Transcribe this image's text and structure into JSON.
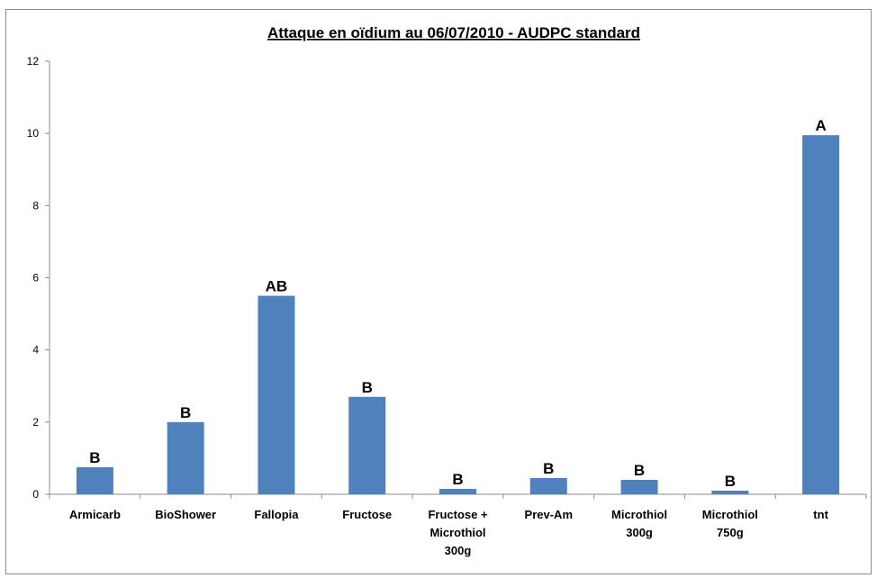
{
  "chart_data": {
    "type": "bar",
    "title": "Attaque en oïdium au 06/07/2010 - AUDPC standard",
    "xlabel": "",
    "ylabel": "",
    "ylim": [
      0,
      12
    ],
    "yticks": [
      "0",
      "2",
      "4",
      "6",
      "8",
      "10",
      "12"
    ],
    "grid": false,
    "legend": "none",
    "bar_color": "#4f81bd",
    "categories": [
      [
        "Armicarb"
      ],
      [
        "BioShower"
      ],
      [
        "Fallopia"
      ],
      [
        "Fructose"
      ],
      [
        "Fructose +",
        "Microthiol",
        "300g"
      ],
      [
        "Prev-Am"
      ],
      [
        "Microthiol",
        "300g"
      ],
      [
        "Microthiol",
        "750g"
      ],
      [
        "tnt"
      ]
    ],
    "values": [
      0.75,
      2.0,
      5.5,
      2.7,
      0.15,
      0.45,
      0.4,
      0.1,
      9.95
    ],
    "data_labels": [
      "B",
      "B",
      "AB",
      "B",
      "B",
      "B",
      "B",
      "B",
      "A"
    ]
  }
}
